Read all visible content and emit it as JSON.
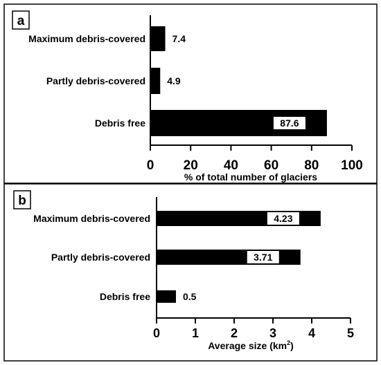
{
  "chart_data": [
    {
      "type": "bar",
      "orientation": "horizontal",
      "panel_label": "a",
      "categories": [
        "Maximum debris-covered",
        "Partly debris-covered",
        "Debris free"
      ],
      "values": [
        7.4,
        4.9,
        87.6
      ],
      "data_labels": [
        "7.4",
        "4.9",
        "87.6"
      ],
      "xlabel": "% of total number of glaciers",
      "xlim": [
        0,
        100
      ],
      "xticks": [
        "0",
        "20",
        "40",
        "60",
        "80",
        "100"
      ],
      "bar_color": "#000000"
    },
    {
      "type": "bar",
      "orientation": "horizontal",
      "panel_label": "b",
      "categories": [
        "Maximum debris-covered",
        "Partly debris-covered",
        "Debris free"
      ],
      "values": [
        4.23,
        3.71,
        0.5
      ],
      "data_labels": [
        "4.23",
        "3.71",
        "0.5"
      ],
      "xlabel": "Average size (km",
      "xlabel_sup": "2",
      "xlabel_end": ")",
      "xlim": [
        0,
        5
      ],
      "xticks": [
        "0",
        "1",
        "2",
        "3",
        "4",
        "5"
      ],
      "bar_color": "#000000"
    }
  ]
}
